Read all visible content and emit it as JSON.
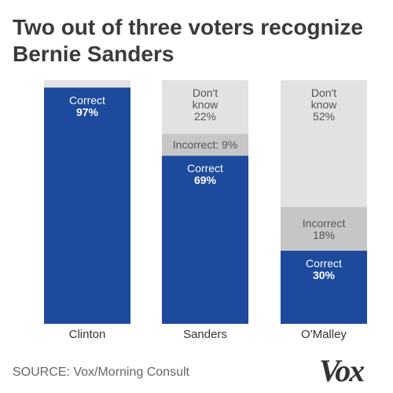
{
  "chart_data": {
    "type": "bar",
    "title": "Two out of three voters recognize Bernie Sanders",
    "categories": [
      "Clinton",
      "Sanders",
      "O'Malley"
    ],
    "stacked": true,
    "ylim": [
      0,
      100
    ],
    "series": [
      {
        "key": "correct",
        "values": [
          97,
          69,
          30
        ],
        "labels": [
          [
            "Correct",
            "97%"
          ],
          [
            "Correct",
            "69%"
          ],
          [
            "Correct",
            "30%"
          ]
        ],
        "color": "#1d4a9c"
      },
      {
        "key": "incorrect",
        "values": [
          0,
          9,
          18
        ],
        "labels": [
          [],
          [
            "Incorrect: 9%"
          ],
          [
            "Incorrect",
            "18%"
          ]
        ],
        "color": "#c6c6c6"
      },
      {
        "key": "dont_know",
        "values": [
          3,
          22,
          52
        ],
        "labels": [
          [],
          [
            "Don't",
            "know",
            "22%"
          ],
          [
            "Don't",
            "know",
            "52%"
          ]
        ],
        "color": "#e2e2e2"
      }
    ]
  },
  "source": "SOURCE: Vox/Morning Consult",
  "logo": "Vox"
}
